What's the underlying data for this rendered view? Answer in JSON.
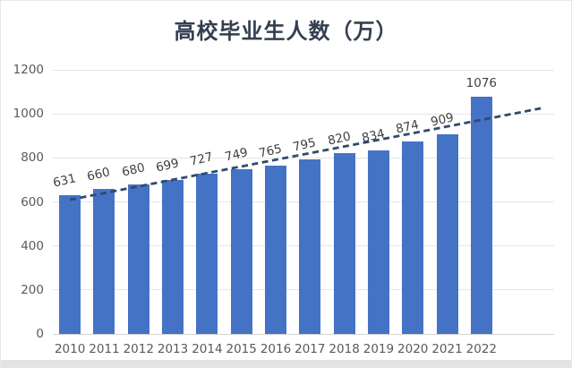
{
  "frame": {
    "background": "#ffffff",
    "border_color": "#e7e7e9",
    "bottom_strip_color": "#e3e3e5"
  },
  "chart_data": {
    "type": "bar",
    "title": "高校毕业生人数（万）",
    "categories": [
      "2010",
      "2011",
      "2012",
      "2013",
      "2014",
      "2015",
      "2016",
      "2017",
      "2018",
      "2019",
      "2020",
      "2021",
      "2022"
    ],
    "values": [
      631,
      660,
      680,
      699,
      727,
      749,
      765,
      795,
      820,
      834,
      874,
      909,
      1076
    ],
    "data_labels_shown": true,
    "xlabel": "",
    "ylabel": "",
    "ylim": [
      0,
      1200
    ],
    "yticks": [
      0,
      200,
      400,
      600,
      800,
      1000,
      1200
    ],
    "grid": true,
    "legend": "none",
    "bar_color": "#4473C6",
    "title_color": "#333F50",
    "axis_label_color": "#595959",
    "data_label_color": "#404040",
    "gridline_color": "#e6e6e6",
    "axis_line_color": "#d4d4d4",
    "trendline": {
      "type": "linear",
      "style": "dashed",
      "color": "#2F4A6E",
      "start_value": 610,
      "end_value": 1025,
      "forecast_categories": 1.73
    }
  }
}
